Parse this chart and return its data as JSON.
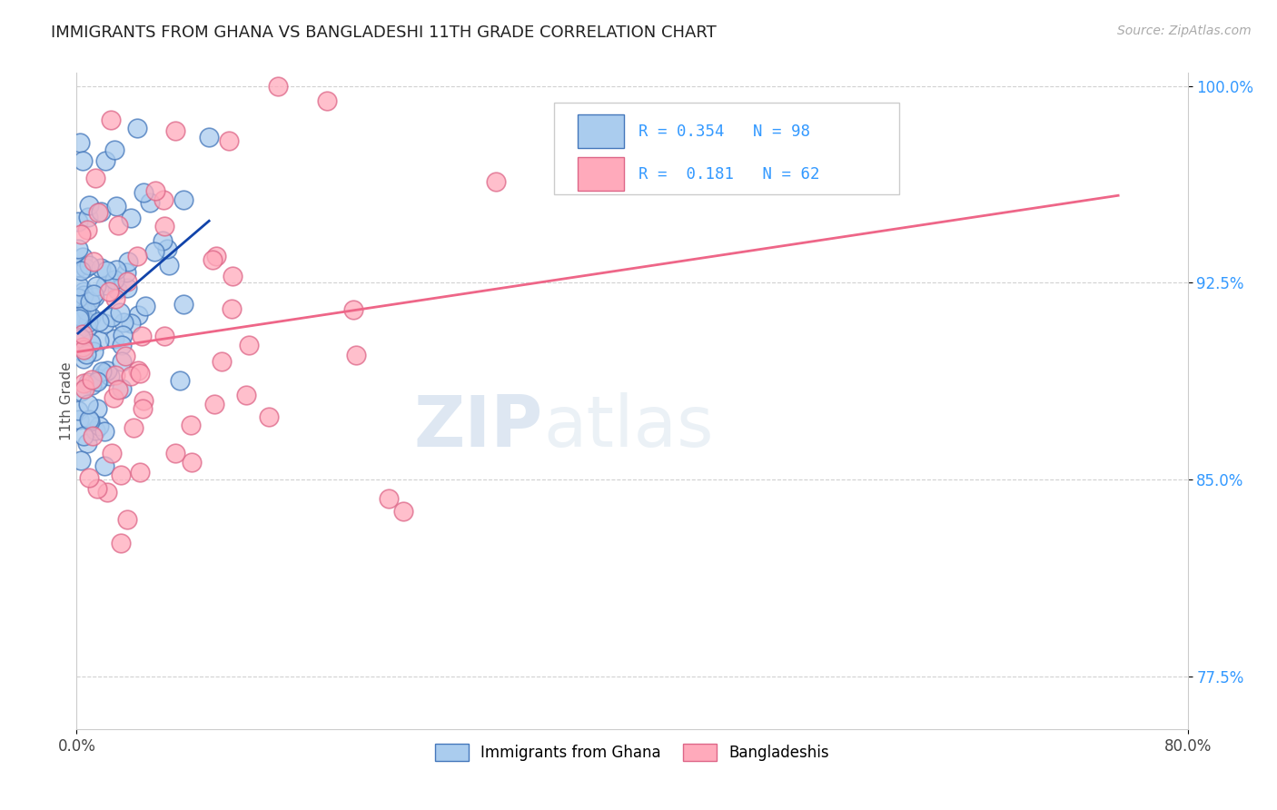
{
  "title": "IMMIGRANTS FROM GHANA VS BANGLADESHI 11TH GRADE CORRELATION CHART",
  "source": "Source: ZipAtlas.com",
  "ylabel": "11th Grade",
  "xlim": [
    0.0,
    0.8
  ],
  "ylim": [
    0.755,
    1.005
  ],
  "ytick_labels": [
    "77.5%",
    "85.0%",
    "92.5%",
    "100.0%"
  ],
  "ytick_positions": [
    0.775,
    0.85,
    0.925,
    1.0
  ],
  "ghana_color": "#aaccee",
  "ghana_edge_color": "#4477bb",
  "bangladesh_color": "#ffaabb",
  "bangladesh_edge_color": "#dd6688",
  "ghana_line_color": "#1144aa",
  "bangladesh_line_color": "#ee6688",
  "legend_series_1": "Immigrants from Ghana",
  "legend_series_2": "Bangladeshis",
  "watermark_zip": "ZIP",
  "watermark_atlas": "atlas",
  "ghana_R": 0.354,
  "ghana_N": 98,
  "bangladesh_R": 0.181,
  "bangladesh_N": 62,
  "background_color": "#ffffff",
  "grid_color": "#cccccc"
}
